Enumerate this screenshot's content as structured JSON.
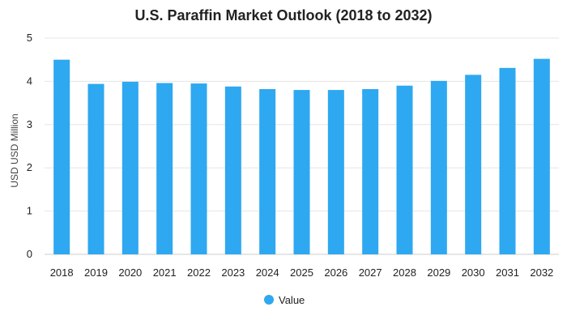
{
  "chart_data": {
    "type": "bar",
    "title": "U.S. Paraffin Market Outlook (2018 to 2032)",
    "xlabel": "",
    "ylabel": "USD USD Million",
    "categories": [
      "2018",
      "2019",
      "2020",
      "2021",
      "2022",
      "2023",
      "2024",
      "2025",
      "2026",
      "2027",
      "2028",
      "2029",
      "2030",
      "2031",
      "2032"
    ],
    "series": [
      {
        "name": "Value",
        "color": "#2ea8f0",
        "values": [
          4.5,
          3.94,
          3.99,
          3.96,
          3.95,
          3.88,
          3.82,
          3.8,
          3.8,
          3.82,
          3.9,
          4.01,
          4.15,
          4.31,
          4.52
        ]
      }
    ],
    "ylim": [
      0,
      5
    ],
    "yticks": [
      0,
      1,
      2,
      3,
      4,
      5
    ],
    "grid": true,
    "legend_position": "bottom-center"
  }
}
